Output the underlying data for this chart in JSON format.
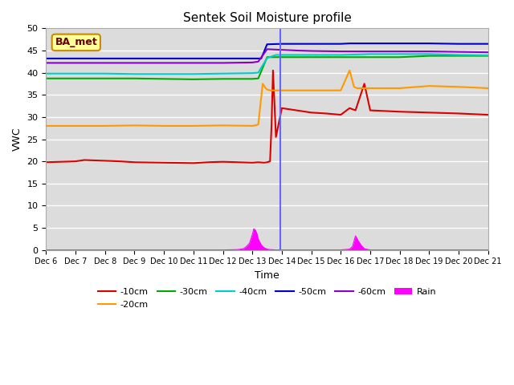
{
  "title": "Sentek Soil Moisture profile",
  "xlabel": "Time",
  "ylabel": "VWC",
  "annotation": "BA_met",
  "ylim": [
    0,
    50
  ],
  "xlim": [
    0,
    15
  ],
  "bg_color": "#dcdcdc",
  "series_order": [
    "-10cm",
    "-20cm",
    "-30cm",
    "-40cm",
    "-50cm",
    "-60cm",
    "Rain"
  ],
  "series": {
    "-10cm": {
      "color": "#dd0000",
      "points": {
        "x": [
          0,
          1.0,
          1.3,
          2.5,
          3.0,
          4.0,
          5.0,
          5.5,
          6.0,
          6.5,
          7.0,
          7.2,
          7.4,
          7.5,
          7.6,
          7.65,
          7.7,
          7.8,
          8.0,
          8.5,
          9.0,
          9.5,
          10.0,
          10.3,
          10.5,
          10.8,
          11.0,
          12.0,
          13.0,
          14.0,
          15.0
        ],
        "y": [
          19.8,
          20.0,
          20.3,
          20.0,
          19.8,
          19.7,
          19.6,
          19.8,
          19.9,
          19.8,
          19.7,
          19.8,
          19.7,
          19.8,
          20.0,
          28.0,
          40.5,
          25.5,
          32.0,
          31.5,
          31.0,
          30.8,
          30.5,
          32.0,
          31.5,
          37.5,
          31.5,
          31.2,
          31.0,
          30.8,
          30.5
        ]
      }
    },
    "-20cm": {
      "color": "#ff9900",
      "points": {
        "x": [
          0,
          1.0,
          2.0,
          3.0,
          4.0,
          5.0,
          6.0,
          7.0,
          7.1,
          7.2,
          7.35,
          7.45,
          7.5,
          7.6,
          7.7,
          8.0,
          9.0,
          10.0,
          10.3,
          10.45,
          10.55,
          11.0,
          12.0,
          13.0,
          14.0,
          15.0
        ],
        "y": [
          28.0,
          28.0,
          28.0,
          28.1,
          28.0,
          28.0,
          28.1,
          28.0,
          28.1,
          28.3,
          37.5,
          36.5,
          36.2,
          36.0,
          36.0,
          36.0,
          36.0,
          36.0,
          40.5,
          36.8,
          36.5,
          36.5,
          36.5,
          37.0,
          36.8,
          36.5
        ]
      }
    },
    "-30cm": {
      "color": "#00aa00",
      "points": {
        "x": [
          0,
          1.0,
          2.0,
          3.0,
          4.0,
          5.0,
          6.0,
          7.0,
          7.2,
          7.5,
          7.7,
          8.0,
          9.0,
          10.0,
          11.0,
          12.0,
          13.0,
          14.0,
          15.0
        ],
        "y": [
          38.7,
          38.7,
          38.7,
          38.7,
          38.6,
          38.5,
          38.6,
          38.6,
          38.7,
          43.5,
          43.5,
          43.5,
          43.5,
          43.5,
          43.5,
          43.5,
          43.8,
          43.8,
          43.8
        ]
      }
    },
    "-40cm": {
      "color": "#00cccc",
      "points": {
        "x": [
          0,
          1.0,
          2.0,
          3.0,
          4.0,
          5.0,
          6.0,
          7.0,
          7.2,
          7.5,
          7.8,
          8.5,
          9.0,
          10.0,
          11.0,
          12.0,
          13.0,
          14.0,
          15.0
        ],
        "y": [
          39.8,
          39.8,
          39.8,
          39.7,
          39.7,
          39.7,
          39.8,
          39.9,
          40.0,
          43.3,
          44.0,
          44.0,
          44.0,
          44.0,
          44.2,
          44.2,
          44.2,
          44.0,
          43.9
        ]
      }
    },
    "-50cm": {
      "color": "#0000cc",
      "points": {
        "x": [
          0,
          1.0,
          2.0,
          3.0,
          4.0,
          5.0,
          6.0,
          7.0,
          7.1,
          7.3,
          7.5,
          8.0,
          9.0,
          10.0,
          10.3,
          10.5,
          11.0,
          12.0,
          13.0,
          14.0,
          15.0
        ],
        "y": [
          43.2,
          43.2,
          43.2,
          43.2,
          43.2,
          43.2,
          43.2,
          43.2,
          43.2,
          43.2,
          46.4,
          46.5,
          46.5,
          46.5,
          46.6,
          46.6,
          46.6,
          46.6,
          46.6,
          46.5,
          46.5
        ]
      }
    },
    "-60cm": {
      "color": "#8800cc",
      "points": {
        "x": [
          0,
          1.0,
          2.0,
          3.0,
          4.0,
          5.0,
          6.0,
          7.0,
          7.2,
          7.5,
          7.8,
          8.5,
          9.0,
          10.0,
          11.0,
          12.0,
          13.0,
          14.0,
          15.0
        ],
        "y": [
          42.2,
          42.2,
          42.2,
          42.2,
          42.2,
          42.2,
          42.2,
          42.3,
          42.5,
          45.3,
          45.2,
          45.0,
          44.9,
          44.8,
          44.8,
          44.8,
          44.8,
          44.7,
          44.6
        ]
      }
    },
    "Rain": {
      "color": "#ff00ff",
      "points": {
        "x": [
          0,
          6.0,
          6.3,
          6.5,
          6.7,
          6.8,
          6.9,
          7.0,
          7.05,
          7.1,
          7.15,
          7.2,
          7.25,
          7.3,
          7.35,
          7.4,
          7.5,
          7.6,
          7.7,
          7.8,
          8.0,
          9.0,
          10.0,
          10.3,
          10.4,
          10.5,
          10.6,
          10.7,
          10.8,
          11.0,
          15.0
        ],
        "y": [
          0,
          0,
          0.05,
          0.1,
          0.3,
          0.8,
          1.5,
          3.5,
          4.8,
          4.5,
          3.8,
          2.5,
          1.8,
          1.2,
          0.8,
          0.5,
          0.2,
          0.1,
          0.05,
          0,
          0,
          0,
          0,
          0.2,
          0.8,
          3.2,
          2.0,
          1.0,
          0.3,
          0,
          0
        ]
      }
    }
  },
  "xtick_labels": [
    "Dec 6",
    "Dec 7",
    "Dec 8",
    "Dec 9",
    "Dec 10",
    "Dec 11",
    "Dec 12",
    "Dec 13",
    "Dec 14",
    "Dec 15",
    "Dec 16",
    "Dec 17",
    "Dec 18",
    "Dec 19",
    "Dec 20",
    "Dec 21"
  ],
  "ytick_vals": [
    0,
    5,
    10,
    15,
    20,
    25,
    30,
    35,
    40,
    45,
    50
  ],
  "vline_x": 7.95,
  "vline_color": "#6666ff",
  "legend_order": [
    "-10cm",
    "-20cm",
    "-30cm",
    "-40cm",
    "-50cm",
    "-60cm",
    "Rain"
  ]
}
